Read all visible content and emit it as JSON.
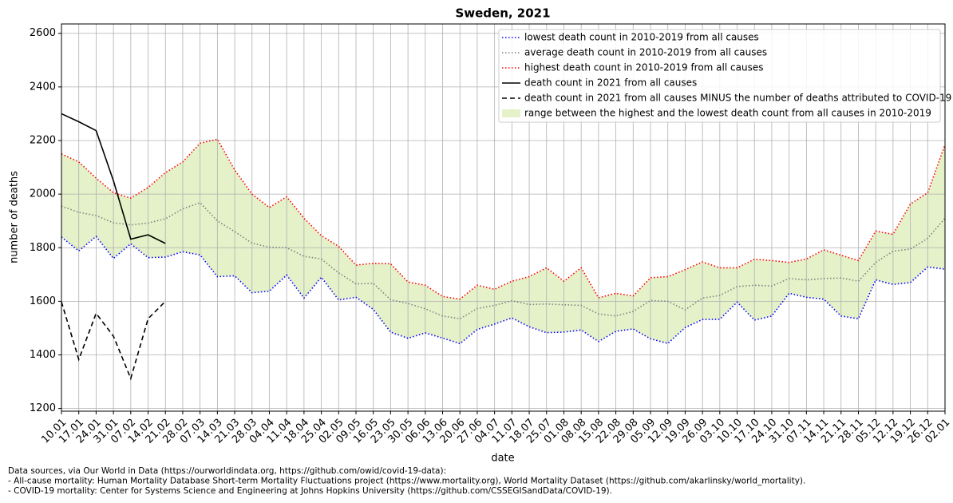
{
  "chart_data": {
    "type": "line",
    "title": "Sweden, 2021",
    "x_label": "date",
    "y_label": "number of deaths",
    "categories": [
      "10.01",
      "17.01",
      "24.01",
      "31.01",
      "07.02",
      "14.02",
      "21.02",
      "28.02",
      "07.03",
      "14.03",
      "21.03",
      "28.03",
      "04.04",
      "11.04",
      "18.04",
      "25.04",
      "02.05",
      "09.05",
      "16.05",
      "23.05",
      "30.05",
      "06.06",
      "13.06",
      "20.06",
      "27.06",
      "04.07",
      "11.07",
      "18.07",
      "25.07",
      "01.08",
      "08.08",
      "15.08",
      "22.08",
      "29.08",
      "05.09",
      "12.09",
      "19.09",
      "26.09",
      "03.10",
      "10.10",
      "17.10",
      "24.10",
      "31.10",
      "07.11",
      "14.11",
      "21.11",
      "28.11",
      "05.12",
      "12.12",
      "19.12",
      "26.12",
      "02.01"
    ],
    "series": [
      {
        "name": "lowest death count in 2010-2019 from all causes",
        "color": "#0000ff",
        "style": "dotted",
        "values": [
          1840,
          1788,
          1842,
          1760,
          1815,
          1763,
          1765,
          1785,
          1773,
          1692,
          1695,
          1632,
          1638,
          1698,
          1612,
          1690,
          1605,
          1615,
          1570,
          1485,
          1462,
          1482,
          1463,
          1442,
          1495,
          1515,
          1538,
          1505,
          1483,
          1485,
          1493,
          1450,
          1488,
          1497,
          1460,
          1443,
          1502,
          1532,
          1533,
          1597,
          1530,
          1545,
          1630,
          1615,
          1608,
          1545,
          1535,
          1680,
          1663,
          1670,
          1728,
          1720
        ]
      },
      {
        "name": "average death count in 2010-2019 from all causes",
        "color": "#808080",
        "style": "dotted",
        "values": [
          1955,
          1932,
          1920,
          1893,
          1885,
          1892,
          1908,
          1945,
          1968,
          1900,
          1860,
          1817,
          1802,
          1800,
          1768,
          1758,
          1706,
          1665,
          1667,
          1606,
          1592,
          1572,
          1545,
          1535,
          1573,
          1585,
          1602,
          1588,
          1590,
          1587,
          1585,
          1553,
          1545,
          1562,
          1603,
          1600,
          1568,
          1612,
          1622,
          1655,
          1660,
          1657,
          1685,
          1680,
          1685,
          1687,
          1675,
          1745,
          1787,
          1795,
          1835,
          1910
        ]
      },
      {
        "name": "highest death count in 2010-2019 from all causes",
        "color": "#ff0000",
        "style": "dotted",
        "values": [
          2150,
          2120,
          2060,
          2005,
          1985,
          2025,
          2080,
          2120,
          2190,
          2205,
          2090,
          2000,
          1950,
          1990,
          1910,
          1845,
          1805,
          1735,
          1742,
          1740,
          1672,
          1660,
          1618,
          1608,
          1660,
          1645,
          1675,
          1692,
          1725,
          1675,
          1725,
          1613,
          1630,
          1620,
          1688,
          1692,
          1718,
          1747,
          1725,
          1725,
          1757,
          1752,
          1745,
          1758,
          1792,
          1772,
          1752,
          1862,
          1850,
          1963,
          2005,
          2185
        ]
      },
      {
        "name": "death count in 2021 from all causes",
        "color": "#000000",
        "style": "solid",
        "values": [
          2300,
          2270,
          2237,
          2050,
          1832,
          1848,
          1816,
          null,
          null,
          null,
          null,
          null,
          null,
          null,
          null,
          null,
          null,
          null,
          null,
          null,
          null,
          null,
          null,
          null,
          null,
          null,
          null,
          null,
          null,
          null,
          null,
          null,
          null,
          null,
          null,
          null,
          null,
          null,
          null,
          null,
          null,
          null,
          null,
          null,
          null,
          null,
          null,
          null,
          null,
          null,
          null,
          null
        ]
      },
      {
        "name": "death count in 2021 from all causes MINUS the number of deaths attributed to COVID-19",
        "color": "#000000",
        "style": "dashed",
        "values": [
          1598,
          1383,
          1555,
          1470,
          1312,
          1535,
          1600,
          null,
          null,
          null,
          null,
          null,
          null,
          null,
          null,
          null,
          null,
          null,
          null,
          null,
          null,
          null,
          null,
          null,
          null,
          null,
          null,
          null,
          null,
          null,
          null,
          null,
          null,
          null,
          null,
          null,
          null,
          null,
          null,
          null,
          null,
          null,
          null,
          null,
          null,
          null,
          null,
          null,
          null,
          null,
          null,
          null
        ]
      }
    ],
    "range": {
      "name": "range between the highest and the lowest death count from all causes in 2010-2019",
      "color": "#e5f1c9"
    },
    "ylim": [
      1190,
      2635
    ],
    "yticks": [
      1200,
      1400,
      1600,
      1800,
      2000,
      2200,
      2400,
      2600
    ],
    "grid": true,
    "legend": "upper right",
    "footnote": [
      "Data sources, via Our World in Data (https://ourworldindata.org, https://github.com/owid/covid-19-data):",
      "- All-cause mortality: Human Mortality Database Short-term Mortality Fluctuations project (https://www.mortality.org), World Mortality Dataset (https://github.com/akarlinsky/world_mortality).",
      "- COVID-19 mortality: Center for Systems Science and Engineering at Johns Hopkins University (https://github.com/CSSEGISandData/COVID-19)."
    ]
  }
}
